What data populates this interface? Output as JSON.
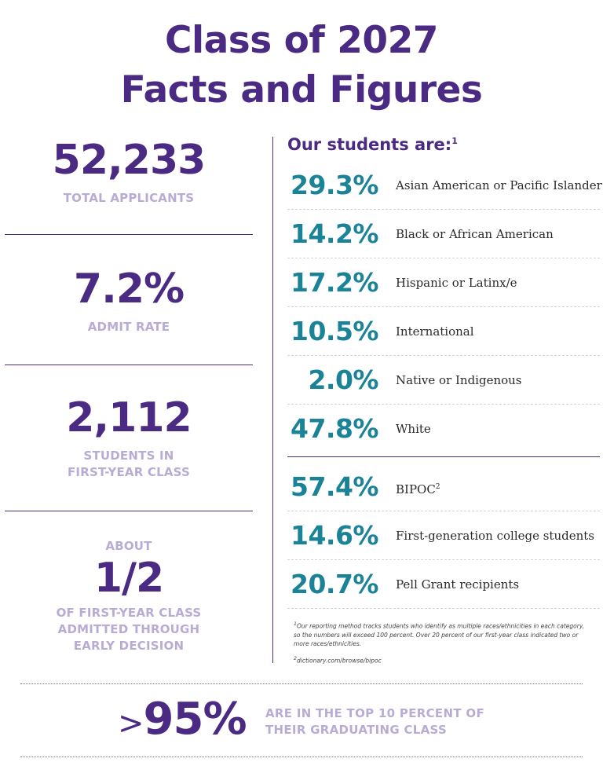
{
  "title": {
    "line1": "Class of 2027",
    "line2": "Facts and Figures"
  },
  "stats": [
    {
      "value": "52,233",
      "caption": "TOTAL APPLICANTS"
    },
    {
      "value": "7.2%",
      "caption": "ADMIT RATE"
    },
    {
      "value": "2,112",
      "caption_line1": "STUDENTS IN",
      "caption_line2": "FIRST-YEAR CLASS"
    },
    {
      "pre": "ABOUT",
      "value": "1/2",
      "caption_line1": "OF FIRST-YEAR CLASS",
      "caption_line2": "ADMITTED THROUGH",
      "caption_line3": "EARLY DECISION"
    }
  ],
  "demographics": {
    "heading": "Our students are:",
    "heading_note": "1",
    "rows": [
      {
        "pct": "29.3%",
        "label": "Asian American or Pacific Islander"
      },
      {
        "pct": "14.2%",
        "label": "Black or African American"
      },
      {
        "pct": "17.2%",
        "label": "Hispanic or Latinx/e"
      },
      {
        "pct": "10.5%",
        "label": "International"
      },
      {
        "pct": "2.0%",
        "label": "Native or Indigenous"
      },
      {
        "pct": "47.8%",
        "label": "White"
      }
    ],
    "rows2": [
      {
        "pct": "57.4%",
        "label": "BIPOC",
        "note": "2"
      },
      {
        "pct": "14.6%",
        "label": "First-generation college students"
      },
      {
        "pct": "20.7%",
        "label": "Pell Grant recipients"
      }
    ]
  },
  "footnotes": {
    "f1_mark": "1",
    "f1": "Our reporting method tracks students who identify as multiple races/ethnicities in each category, so the numbers will exceed 100 percent. Over 20 percent of our first-year class indicated two or more races/ethnicities.",
    "f2_mark": "2",
    "f2": "dictionary.com/browse/bipoc"
  },
  "bottom": {
    "symbol": ">",
    "value": "95%",
    "caption_line1": "ARE IN THE TOP 10 PERCENT OF",
    "caption_line2": "THEIR GRADUATING CLASS"
  },
  "colors": {
    "purple": "#4a2a82",
    "lavender": "#b9acd4",
    "teal": "#1a8398"
  }
}
